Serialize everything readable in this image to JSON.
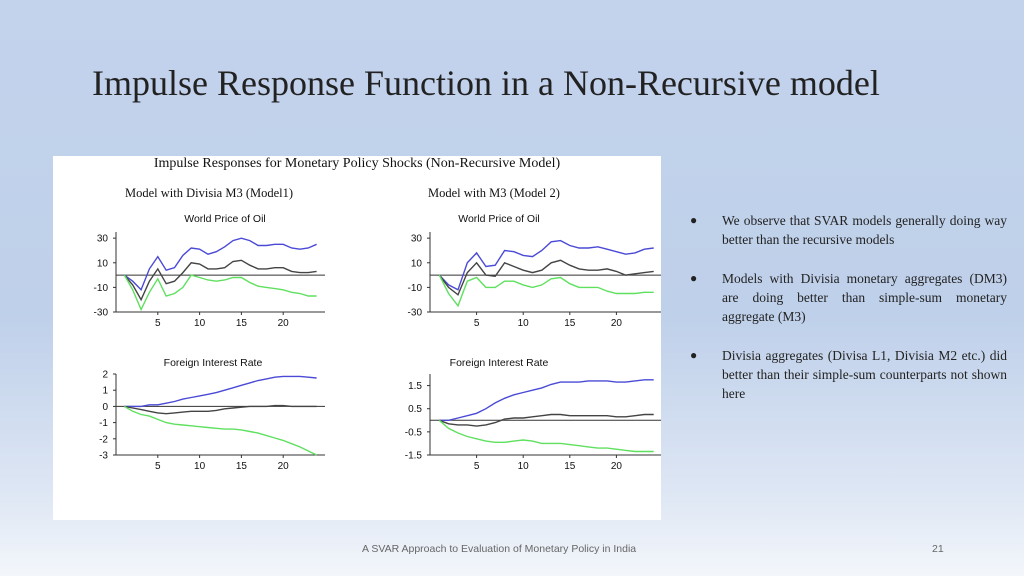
{
  "slide": {
    "title": "Impulse Response Function in a Non-Recursive model",
    "footer_text": "A SVAR Approach to Evaluation of Monetary Policy in India",
    "page_number": "21"
  },
  "figure": {
    "title": "Impulse Responses for Monetary Policy Shocks (Non-Recursive Model)",
    "model1_title": "Model with Divisia M3 (Model1)",
    "model2_title": "Model with M3 (Model 2)"
  },
  "bullets": [
    "We observe that SVAR models generally doing way better than the recursive models",
    "Models with Divisia monetary aggregates (DM3) are doing better than simple-sum monetary aggregate (M3)",
    "Divisia aggregates (Divisa L1, Divisia M2 etc.) did better than their simple-sum counterparts not shown here"
  ],
  "colors": {
    "series_blue": "#4a4ad6",
    "series_black": "#444444",
    "series_green": "#5fe05f"
  },
  "chart_data": [
    {
      "type": "line",
      "title": "World Price of Oil",
      "x": [
        1,
        2,
        3,
        4,
        5,
        6,
        7,
        8,
        9,
        10,
        11,
        12,
        13,
        14,
        15,
        16,
        17,
        18,
        19,
        20,
        21,
        22,
        23,
        24
      ],
      "xticks": [
        5,
        10,
        15,
        20
      ],
      "yticks": [
        30,
        10,
        -10,
        -30
      ],
      "ylim": [
        -30,
        35
      ],
      "xlim": [
        0,
        25
      ],
      "series": [
        {
          "values": [
            0,
            -5,
            -12,
            5,
            15,
            4,
            6,
            16,
            22,
            21,
            17,
            19,
            23,
            28,
            30,
            28,
            24,
            24,
            25,
            25,
            22,
            21,
            22,
            25
          ]
        },
        {
          "values": [
            0,
            -8,
            -20,
            -5,
            5,
            -7,
            -5,
            2,
            10,
            9,
            5,
            5,
            6,
            11,
            12,
            8,
            5,
            5,
            6,
            6,
            3,
            2,
            2,
            3
          ]
        },
        {
          "values": [
            0,
            -12,
            -28,
            -14,
            -3,
            -17,
            -15,
            -10,
            0,
            -2,
            -4,
            -5,
            -4,
            -2,
            -2,
            -6,
            -9,
            -10,
            -11,
            -12,
            -14,
            -15,
            -17,
            -17
          ]
        }
      ]
    },
    {
      "type": "line",
      "title": "World Price of Oil",
      "x": [
        1,
        2,
        3,
        4,
        5,
        6,
        7,
        8,
        9,
        10,
        11,
        12,
        13,
        14,
        15,
        16,
        17,
        18,
        19,
        20,
        21,
        22,
        23,
        24
      ],
      "xticks": [
        5,
        10,
        15,
        20
      ],
      "yticks": [
        30,
        10,
        -10,
        -30
      ],
      "ylim": [
        -30,
        35
      ],
      "xlim": [
        0,
        25
      ],
      "series": [
        {
          "values": [
            0,
            -8,
            -12,
            10,
            18,
            7,
            8,
            20,
            19,
            16,
            15,
            20,
            27,
            28,
            24,
            22,
            22,
            23,
            21,
            19,
            17,
            18,
            21,
            22
          ]
        },
        {
          "values": [
            0,
            -10,
            -16,
            2,
            10,
            0,
            -1,
            10,
            7,
            4,
            2,
            4,
            10,
            12,
            8,
            5,
            4,
            4,
            5,
            3,
            0,
            1,
            2,
            3
          ]
        },
        {
          "values": [
            0,
            -15,
            -25,
            -5,
            -2,
            -10,
            -10,
            -5,
            -5,
            -8,
            -10,
            -8,
            -3,
            -2,
            -7,
            -10,
            -10,
            -10,
            -13,
            -15,
            -15,
            -15,
            -14,
            -14
          ]
        }
      ]
    },
    {
      "type": "line",
      "title": "Foreign Interest Rate",
      "x": [
        1,
        2,
        3,
        4,
        5,
        6,
        7,
        8,
        9,
        10,
        11,
        12,
        13,
        14,
        15,
        16,
        17,
        18,
        19,
        20,
        21,
        22,
        23,
        24
      ],
      "xticks": [
        5,
        10,
        15,
        20
      ],
      "yticks": [
        2,
        1,
        0,
        -1,
        -2,
        -3
      ],
      "ylim": [
        -3,
        2
      ],
      "xlim": [
        0,
        25
      ],
      "series": [
        {
          "values": [
            0,
            0,
            0,
            0.1,
            0.1,
            0.2,
            0.3,
            0.45,
            0.55,
            0.65,
            0.75,
            0.85,
            1.0,
            1.15,
            1.3,
            1.45,
            1.6,
            1.7,
            1.8,
            1.85,
            1.85,
            1.85,
            1.8,
            1.75
          ]
        },
        {
          "values": [
            0,
            -0.1,
            -0.2,
            -0.3,
            -0.4,
            -0.45,
            -0.4,
            -0.35,
            -0.3,
            -0.3,
            -0.3,
            -0.25,
            -0.15,
            -0.1,
            -0.05,
            0,
            0,
            0,
            0.05,
            0.05,
            0,
            0,
            0,
            0
          ]
        },
        {
          "values": [
            0,
            -0.3,
            -0.5,
            -0.6,
            -0.8,
            -1.0,
            -1.1,
            -1.15,
            -1.2,
            -1.25,
            -1.3,
            -1.35,
            -1.4,
            -1.4,
            -1.45,
            -1.55,
            -1.65,
            -1.8,
            -1.95,
            -2.1,
            -2.3,
            -2.5,
            -2.75,
            -3.0
          ]
        }
      ]
    },
    {
      "type": "line",
      "title": "Foreign Interest Rate",
      "x": [
        1,
        2,
        3,
        4,
        5,
        6,
        7,
        8,
        9,
        10,
        11,
        12,
        13,
        14,
        15,
        16,
        17,
        18,
        19,
        20,
        21,
        22,
        23,
        24
      ],
      "xticks": [
        5,
        10,
        15,
        20
      ],
      "yticks": [
        1.5,
        0.5,
        -0.5,
        -1.5
      ],
      "ylim": [
        -1.5,
        2
      ],
      "xlim": [
        0,
        25
      ],
      "series": [
        {
          "values": [
            0,
            0,
            0.1,
            0.2,
            0.3,
            0.5,
            0.75,
            0.95,
            1.1,
            1.2,
            1.3,
            1.4,
            1.55,
            1.65,
            1.65,
            1.65,
            1.7,
            1.7,
            1.7,
            1.65,
            1.65,
            1.7,
            1.75,
            1.75
          ]
        },
        {
          "values": [
            0,
            -0.15,
            -0.2,
            -0.2,
            -0.25,
            -0.2,
            -0.1,
            0.05,
            0.1,
            0.1,
            0.15,
            0.2,
            0.25,
            0.25,
            0.2,
            0.2,
            0.2,
            0.2,
            0.2,
            0.15,
            0.15,
            0.2,
            0.25,
            0.25
          ]
        },
        {
          "values": [
            0,
            -0.35,
            -0.55,
            -0.7,
            -0.8,
            -0.9,
            -0.95,
            -0.95,
            -0.9,
            -0.85,
            -0.9,
            -1.0,
            -1.0,
            -1.0,
            -1.05,
            -1.1,
            -1.15,
            -1.2,
            -1.2,
            -1.25,
            -1.3,
            -1.35,
            -1.35,
            -1.35
          ]
        }
      ]
    }
  ]
}
